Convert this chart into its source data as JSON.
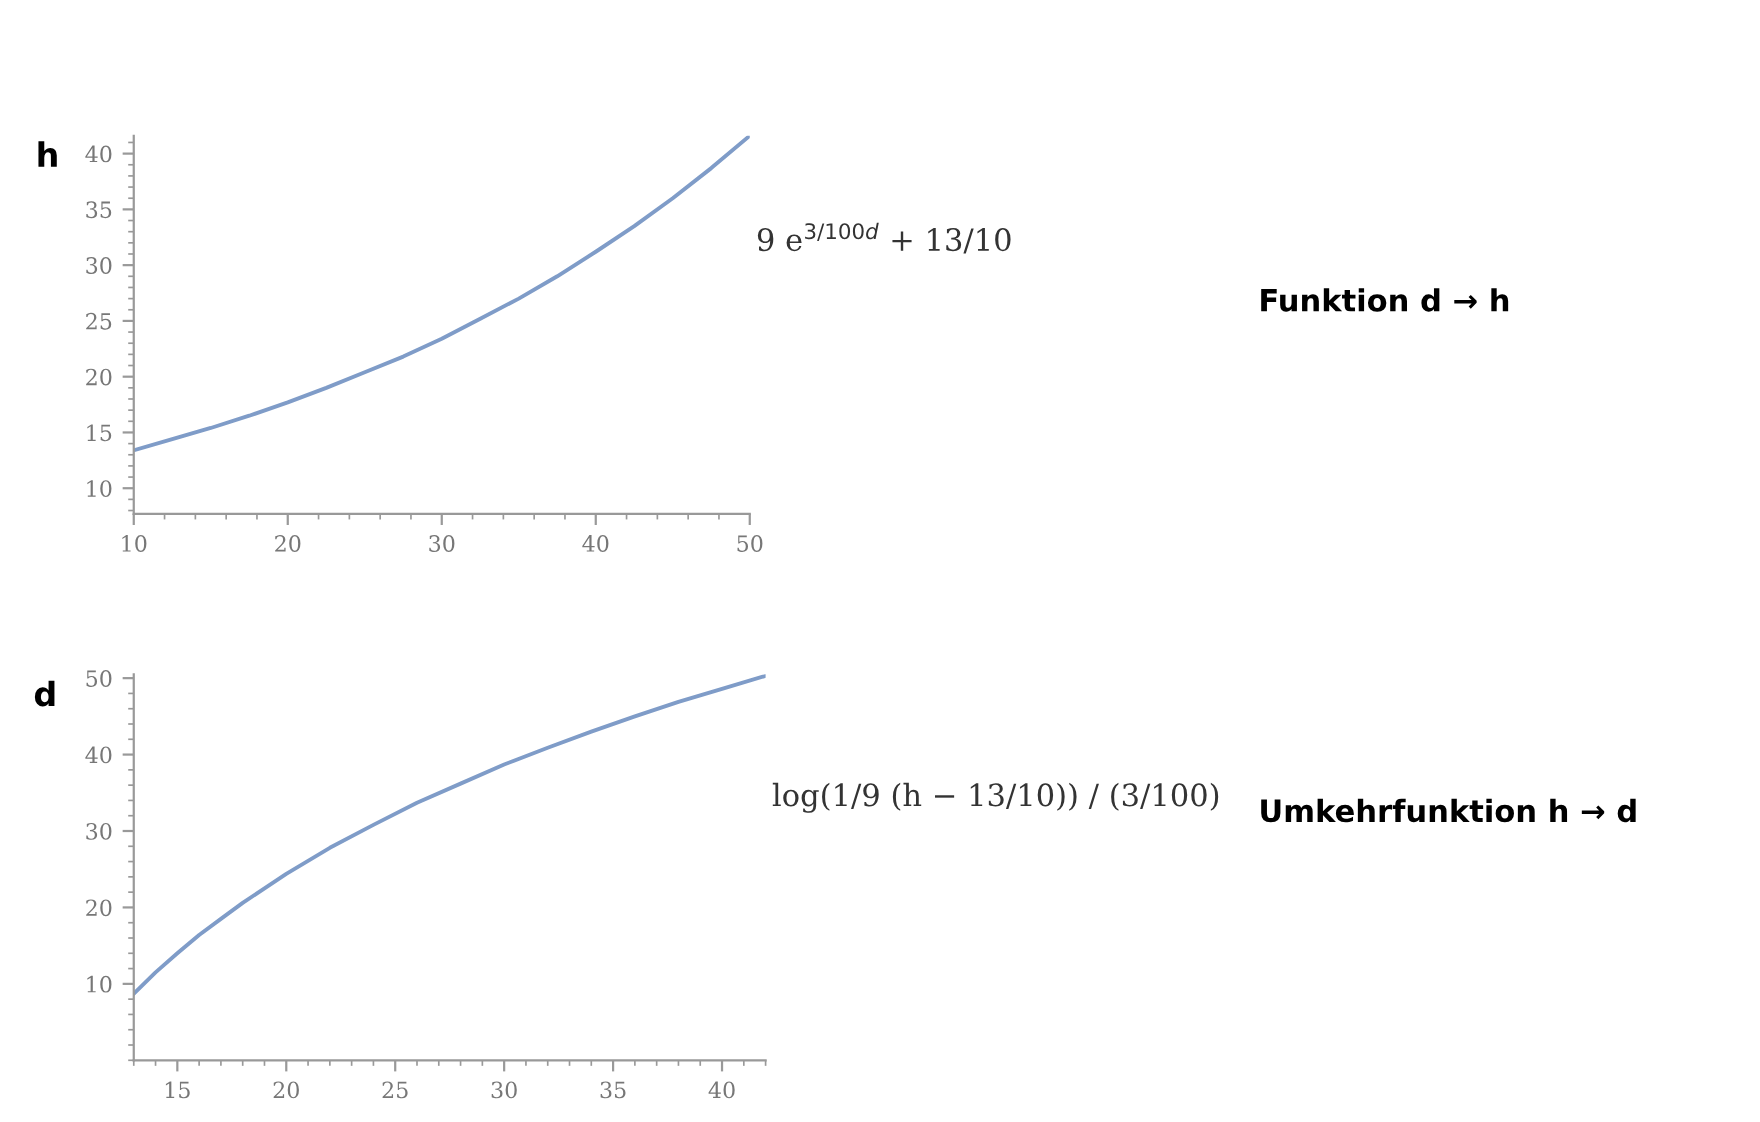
{
  "chart_data": [
    {
      "type": "line",
      "ylabel": "h",
      "annotations": [
        "9 e$^{3/100d}$ + 13/10",
        "Funktion d → h"
      ],
      "x": [
        10,
        12.5,
        15,
        17.5,
        20,
        22.5,
        25,
        27.5,
        30,
        32.5,
        35,
        37.5,
        40,
        42.5,
        45,
        47.5,
        50
      ],
      "series": [
        {
          "color": "#7f9cc8",
          "values": [
            13.4,
            14.4,
            15.4,
            16.5,
            17.7,
            19.0,
            20.4,
            21.8,
            23.4,
            25.2,
            27.0,
            29.0,
            31.2,
            33.5,
            36.0,
            38.7,
            41.6
          ]
        }
      ],
      "xlim": [
        10,
        50
      ],
      "xticks": [
        10,
        20,
        30,
        40,
        50
      ],
      "ylim": [
        7.7,
        41.6
      ],
      "yticks": [
        10,
        15,
        20,
        25,
        30,
        35,
        40
      ],
      "grid": false,
      "legend": false,
      "marker": "none",
      "line_style": "solid"
    },
    {
      "type": "line",
      "ylabel": "d",
      "annotations": [
        "log(1/9 (h − 13/10)) / (3/100)",
        "Umkehrfunktion h → d"
      ],
      "x": [
        13,
        14,
        15,
        16,
        17,
        18,
        20,
        22,
        24,
        26,
        28,
        30,
        32,
        34,
        36,
        38,
        40,
        42
      ],
      "series": [
        {
          "color": "#7f9cc8",
          "values": [
            8.7,
            11.5,
            14.0,
            16.4,
            18.5,
            20.6,
            24.4,
            27.8,
            30.8,
            33.7,
            36.2,
            38.7,
            40.9,
            43.0,
            45.0,
            46.9,
            48.6,
            50.3
          ]
        }
      ],
      "xlim": [
        13,
        42
      ],
      "xticks": [
        15,
        20,
        25,
        30,
        35,
        40
      ],
      "ylim": [
        0,
        50.5
      ],
      "yticks": [
        10,
        20,
        30,
        40,
        50
      ],
      "grid": false,
      "legend": false,
      "marker": "none",
      "line_style": "solid"
    }
  ]
}
